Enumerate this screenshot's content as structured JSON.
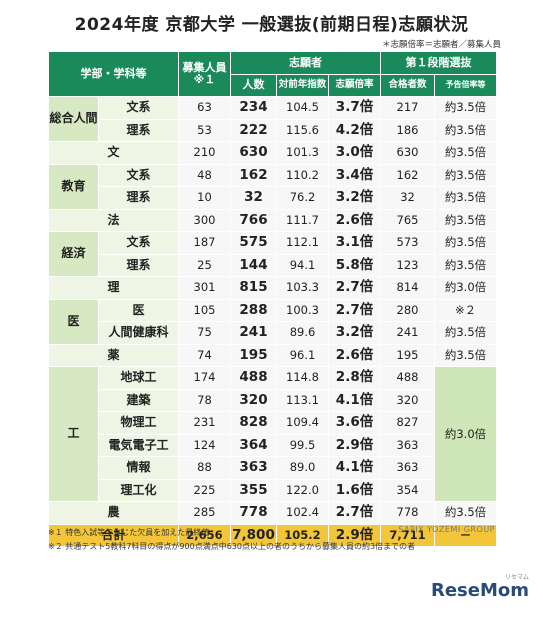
{
  "title": "2024年度 京都大学 一般選抜(前期日程)志願状況",
  "note": "＊志願倍率＝志願者／募集人員",
  "headers": {
    "dept": "学部・学科等",
    "quota": "募集人員",
    "quota_note": "※１",
    "applicants": "志願者",
    "count": "人数",
    "vs_prev": "対前年指数",
    "ratio": "志願倍率",
    "stage1": "第１段階選抜",
    "passers": "合格者数",
    "forecast": "予告倍率等"
  },
  "rows": [
    {
      "faculty": "総合人間",
      "dept": "文系",
      "quota": "63",
      "count": "234",
      "vs_prev": "104.5",
      "ratio": "3.7倍",
      "passers": "217",
      "forecast": "約3.5倍"
    },
    {
      "dept": "理系",
      "quota": "53",
      "count": "222",
      "vs_prev": "115.6",
      "ratio": "4.2倍",
      "passers": "186",
      "forecast": "約3.5倍"
    },
    {
      "faculty": "文",
      "quota": "210",
      "count": "630",
      "vs_prev": "101.3",
      "ratio": "3.0倍",
      "passers": "630",
      "forecast": "約3.5倍"
    },
    {
      "faculty": "教育",
      "dept": "文系",
      "quota": "48",
      "count": "162",
      "vs_prev": "110.2",
      "ratio": "3.4倍",
      "passers": "162",
      "forecast": "約3.5倍"
    },
    {
      "dept": "理系",
      "quota": "10",
      "count": "32",
      "vs_prev": "76.2",
      "ratio": "3.2倍",
      "passers": "32",
      "forecast": "約3.5倍"
    },
    {
      "faculty": "法",
      "quota": "300",
      "count": "766",
      "vs_prev": "111.7",
      "ratio": "2.6倍",
      "passers": "765",
      "forecast": "約3.5倍"
    },
    {
      "faculty": "経済",
      "dept": "文系",
      "quota": "187",
      "count": "575",
      "vs_prev": "112.1",
      "ratio": "3.1倍",
      "passers": "573",
      "forecast": "約3.5倍"
    },
    {
      "dept": "理系",
      "quota": "25",
      "count": "144",
      "vs_prev": "94.1",
      "ratio": "5.8倍",
      "passers": "123",
      "forecast": "約3.5倍"
    },
    {
      "faculty": "理",
      "quota": "301",
      "count": "815",
      "vs_prev": "103.3",
      "ratio": "2.7倍",
      "passers": "814",
      "forecast": "約3.0倍"
    },
    {
      "faculty": "医",
      "dept": "医",
      "quota": "105",
      "count": "288",
      "vs_prev": "100.3",
      "ratio": "2.7倍",
      "passers": "280",
      "forecast": "※２"
    },
    {
      "dept": "人間健康科",
      "quota": "75",
      "count": "241",
      "vs_prev": "89.6",
      "ratio": "3.2倍",
      "passers": "241",
      "forecast": "約3.5倍"
    },
    {
      "faculty": "薬",
      "quota": "74",
      "count": "195",
      "vs_prev": "96.1",
      "ratio": "2.6倍",
      "passers": "195",
      "forecast": "約3.5倍"
    },
    {
      "faculty": "工",
      "dept": "地球工",
      "quota": "174",
      "count": "488",
      "vs_prev": "114.8",
      "ratio": "2.8倍",
      "passers": "488",
      "forecast": "約3.0倍"
    },
    {
      "dept": "建築",
      "quota": "78",
      "count": "320",
      "vs_prev": "113.1",
      "ratio": "4.1倍",
      "passers": "320"
    },
    {
      "dept": "物理工",
      "quota": "231",
      "count": "828",
      "vs_prev": "109.4",
      "ratio": "3.6倍",
      "passers": "827"
    },
    {
      "dept": "電気電子工",
      "quota": "124",
      "count": "364",
      "vs_prev": "99.5",
      "ratio": "2.9倍",
      "passers": "363"
    },
    {
      "dept": "情報",
      "quota": "88",
      "count": "363",
      "vs_prev": "89.0",
      "ratio": "4.1倍",
      "passers": "363"
    },
    {
      "dept": "理工化",
      "quota": "225",
      "count": "355",
      "vs_prev": "122.0",
      "ratio": "1.6倍",
      "passers": "354"
    },
    {
      "faculty": "農",
      "quota": "285",
      "count": "778",
      "vs_prev": "102.4",
      "ratio": "2.7倍",
      "passers": "778",
      "forecast": "約3.5倍"
    }
  ],
  "total": {
    "label": "合計",
    "quota": "2,656",
    "count": "7,800",
    "vs_prev": "105.2",
    "ratio": "2.9倍",
    "passers": "7,711",
    "forecast": "－"
  },
  "brand": "SAPIX YOZEMI GROUP",
  "footnote1": "※１ 特色入試等で生じた欠員を加えた最終値",
  "footnote2": "※２ 共通テスト5教科7科目の得点が900点満点中630点以上の者のうちから募集人員の約3倍までの者",
  "logo": "ReseMom",
  "logo_kana": "リセマム"
}
